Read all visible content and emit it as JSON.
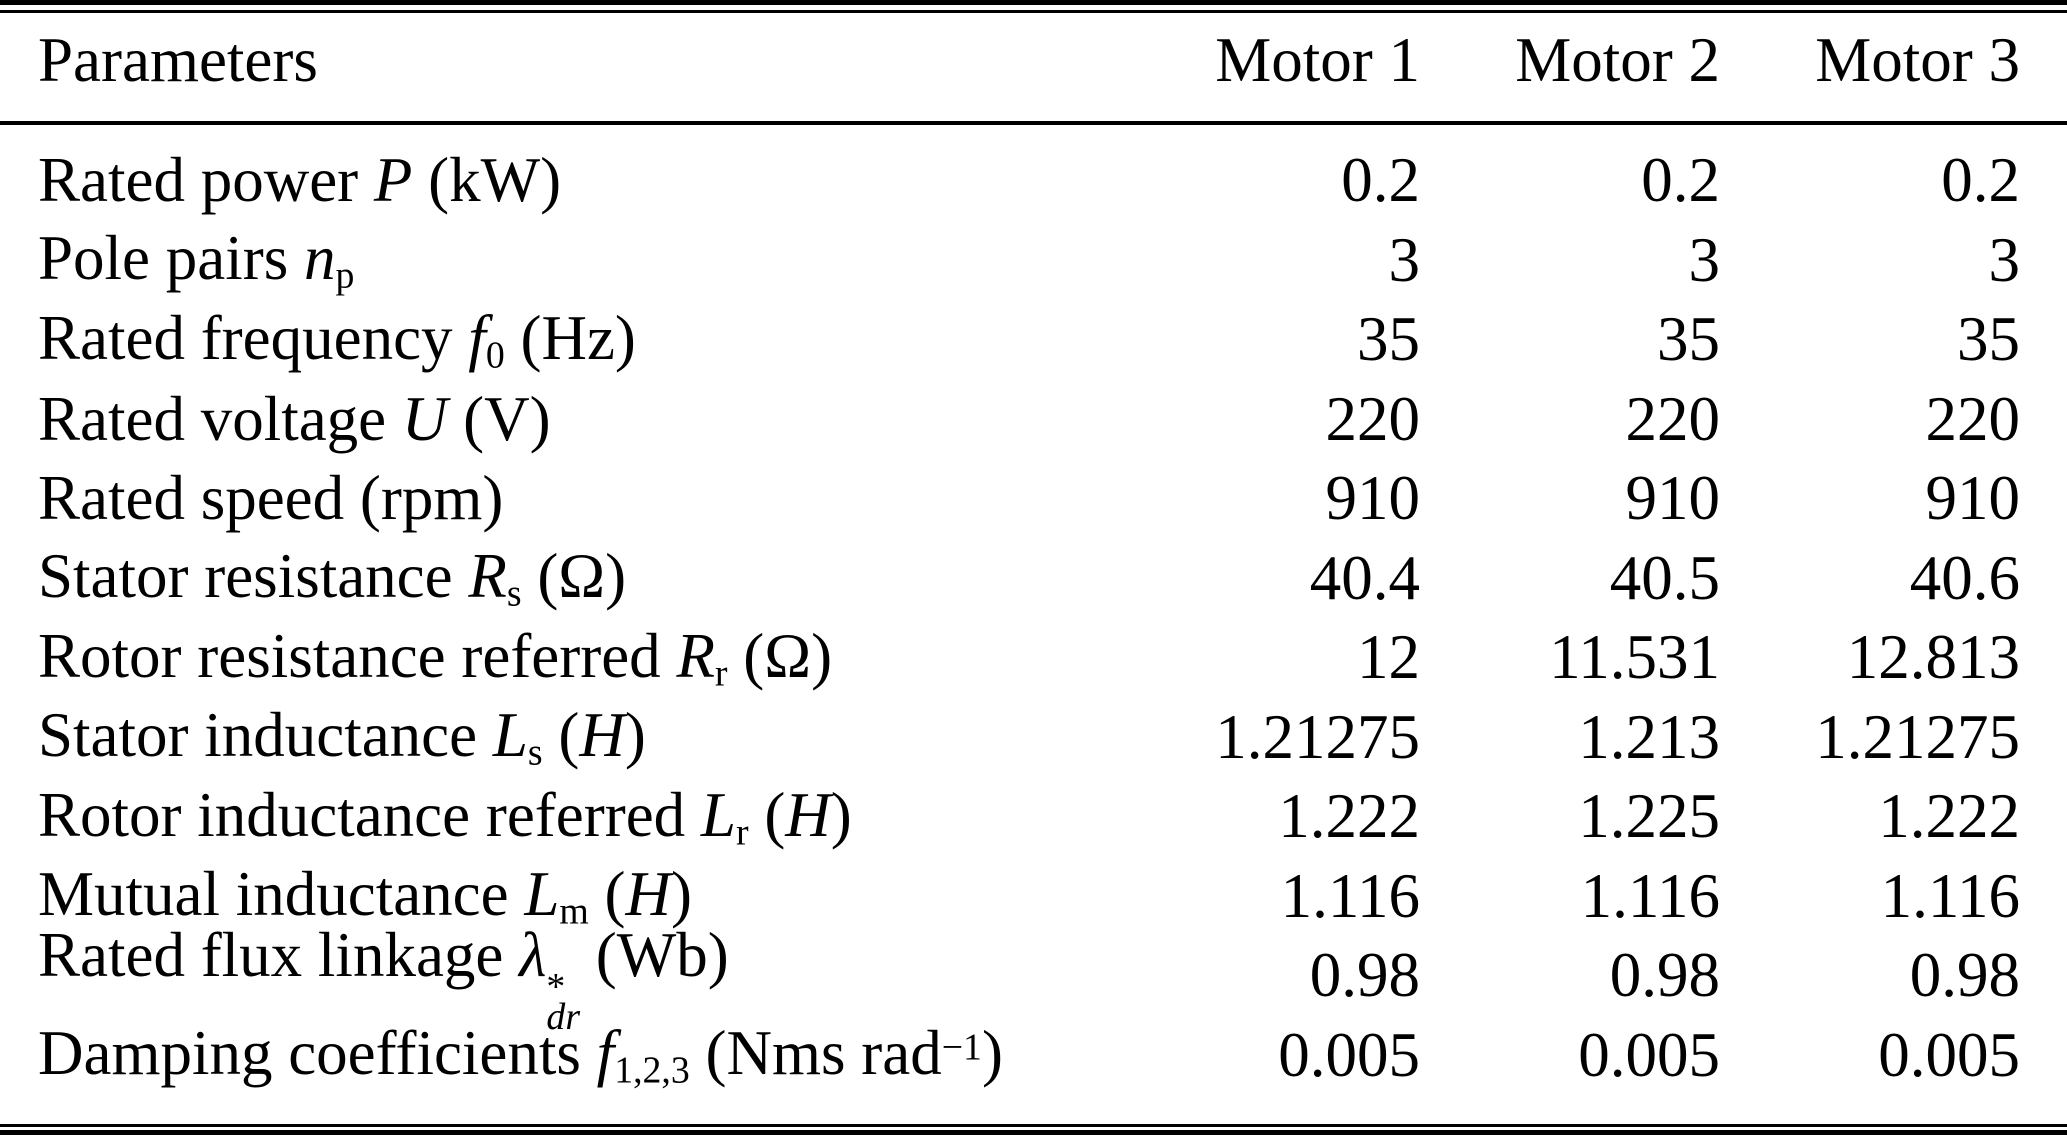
{
  "table": {
    "columns": [
      "Parameters",
      "Motor 1",
      "Motor 2",
      "Motor 3"
    ],
    "rows": [
      {
        "label": [
          {
            "t": "Rated power ",
            "s": "rm"
          },
          {
            "t": "P",
            "s": "it"
          },
          {
            "t": " (kW)",
            "s": "rm"
          }
        ],
        "values": [
          "0.2",
          "0.2",
          "0.2"
        ]
      },
      {
        "label": [
          {
            "t": "Pole pairs ",
            "s": "rm"
          },
          {
            "t": "n",
            "s": "it"
          },
          {
            "t": "p",
            "s": "sub"
          }
        ],
        "values": [
          "3",
          "3",
          "3"
        ]
      },
      {
        "label": [
          {
            "t": "Rated frequency ",
            "s": "rm"
          },
          {
            "t": "f",
            "s": "it"
          },
          {
            "t": "0",
            "s": "sub"
          },
          {
            "t": " (Hz)",
            "s": "rm"
          }
        ],
        "values": [
          "35",
          "35",
          "35"
        ]
      },
      {
        "label": [
          {
            "t": "Rated voltage ",
            "s": "rm"
          },
          {
            "t": "U",
            "s": "it"
          },
          {
            "t": " (V)",
            "s": "rm"
          }
        ],
        "values": [
          "220",
          "220",
          "220"
        ]
      },
      {
        "label": [
          {
            "t": "Rated speed (rpm)",
            "s": "rm"
          }
        ],
        "values": [
          "910",
          "910",
          "910"
        ]
      },
      {
        "label": [
          {
            "t": "Stator resistance ",
            "s": "rm"
          },
          {
            "t": "R",
            "s": "it"
          },
          {
            "t": "s",
            "s": "sub"
          },
          {
            "t": " (Ω)",
            "s": "rm"
          }
        ],
        "values": [
          "40.4",
          "40.5",
          "40.6"
        ]
      },
      {
        "label": [
          {
            "t": "Rotor resistance referred ",
            "s": "rm"
          },
          {
            "t": "R",
            "s": "it"
          },
          {
            "t": "r",
            "s": "sub"
          },
          {
            "t": " (Ω)",
            "s": "rm"
          }
        ],
        "values": [
          "12",
          "11.531",
          "12.813"
        ]
      },
      {
        "label": [
          {
            "t": "Stator inductance ",
            "s": "rm"
          },
          {
            "t": "L",
            "s": "it"
          },
          {
            "t": "s",
            "s": "sub"
          },
          {
            "t": " (",
            "s": "rm"
          },
          {
            "t": "H",
            "s": "it"
          },
          {
            "t": ")",
            "s": "rm"
          }
        ],
        "values": [
          "1.21275",
          "1.213",
          "1.21275"
        ]
      },
      {
        "label": [
          {
            "t": "Rotor inductance referred ",
            "s": "rm"
          },
          {
            "t": "L",
            "s": "it"
          },
          {
            "t": "r",
            "s": "sub"
          },
          {
            "t": " (",
            "s": "rm"
          },
          {
            "t": "H",
            "s": "it"
          },
          {
            "t": ")",
            "s": "rm"
          }
        ],
        "values": [
          "1.222",
          "1.225",
          "1.222"
        ]
      },
      {
        "label": [
          {
            "t": "Mutual inductance ",
            "s": "rm"
          },
          {
            "t": "L",
            "s": "it"
          },
          {
            "t": "m",
            "s": "sub"
          },
          {
            "t": " (",
            "s": "rm"
          },
          {
            "t": "H",
            "s": "it"
          },
          {
            "t": ")",
            "s": "rm"
          }
        ],
        "values": [
          "1.116",
          "1.116",
          "1.116"
        ]
      },
      {
        "label": [
          {
            "t": "Rated flux linkage ",
            "s": "rm"
          },
          {
            "t": "λ",
            "s": "it"
          },
          {
            "s": "stack",
            "top": "*",
            "bot": "dr"
          },
          {
            "t": " (Wb)",
            "s": "rm"
          }
        ],
        "values": [
          "0.98",
          "0.98",
          "0.98"
        ]
      },
      {
        "label": [
          {
            "t": "Damping coefficients ",
            "s": "rm"
          },
          {
            "t": "f",
            "s": "it"
          },
          {
            "t": "1,2,3",
            "s": "sub"
          },
          {
            "t": " (Nms rad",
            "s": "rm"
          },
          {
            "t": "−1",
            "s": "sup"
          },
          {
            "t": ")",
            "s": "rm"
          }
        ],
        "values": [
          "0.005",
          "0.005",
          "0.005"
        ]
      }
    ]
  }
}
